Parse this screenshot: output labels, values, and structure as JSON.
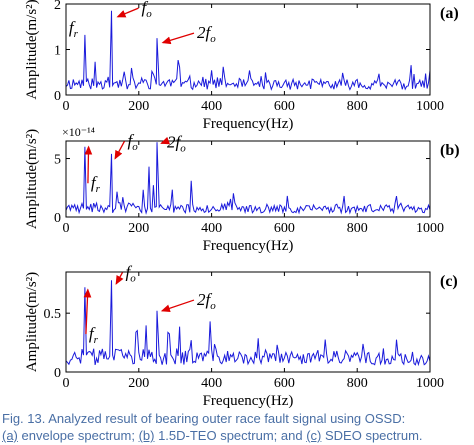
{
  "caption": {
    "line1": "Fig. 13.   Analyzed result of bearing outer race fault signal using OSSD:",
    "line2_a": "(a)",
    "line2_b": " envelope spectrum; ",
    "line2_c": "(b)",
    "line2_d": " 1.5D-TEO spectrum; and ",
    "line2_e": "(c)",
    "line2_f": " SDEO spectrum."
  },
  "chart_data": [
    {
      "type": "line",
      "panel_label": "(a)",
      "xlabel": "Frequency(Hz)",
      "ylabel": "Amplitude(m/s²)",
      "xlim": [
        0,
        1000
      ],
      "ylim": [
        0,
        2
      ],
      "xticks": [
        "0",
        "200",
        "400",
        "600",
        "800",
        "1000"
      ],
      "yticks": [
        "0",
        "1",
        "2"
      ],
      "annotations": [
        {
          "main": "f",
          "sub": "r",
          "x": 52,
          "y": 1.32
        },
        {
          "main": "f",
          "sub": "o",
          "x": 125,
          "y": 1.8
        },
        {
          "main": "2f",
          "sub": "o",
          "x": 250,
          "y": 1.25
        }
      ],
      "peaks": [
        {
          "x": 52,
          "y": 1.32
        },
        {
          "x": 125,
          "y": 1.85
        },
        {
          "x": 250,
          "y": 1.25
        }
      ],
      "seed": 11,
      "noise": {
        "base": 0.12,
        "amp": 0.28,
        "spike": 0.55
      }
    },
    {
      "type": "line",
      "panel_label": "(b)",
      "xlabel": "Frequency(Hz)",
      "ylabel": "Amplitude(m/s²)",
      "exponent": "×10⁻¹⁴",
      "xlim": [
        0,
        1000
      ],
      "ylim": [
        0,
        6.5
      ],
      "xticks": [
        "0",
        "200",
        "400",
        "600",
        "800",
        "1000"
      ],
      "yticks": [
        "0",
        "5"
      ],
      "annotations": [
        {
          "main": "f",
          "sub": "r",
          "x": 52,
          "y": 4.0
        },
        {
          "main": "f",
          "sub": "o",
          "x": 125,
          "y": 5.2
        },
        {
          "main": "2f",
          "sub": "o",
          "x": 250,
          "y": 6.3
        }
      ],
      "peaks": [
        {
          "x": 52,
          "y": 6.0
        },
        {
          "x": 125,
          "y": 5.4
        },
        {
          "x": 250,
          "y": 6.4
        },
        {
          "x": 228,
          "y": 4.3
        }
      ],
      "seed": 23,
      "noise": {
        "base": 0.35,
        "amp": 0.9,
        "spike": 2.0
      }
    },
    {
      "type": "line",
      "panel_label": "(c)",
      "xlabel": "Frequency(Hz)",
      "ylabel": "Amplitude(m/s²)",
      "xlim": [
        0,
        1000
      ],
      "ylim": [
        0,
        0.85
      ],
      "xticks": [
        "0",
        "200",
        "400",
        "600",
        "800",
        "1000"
      ],
      "yticks": [
        "0",
        "0.5"
      ],
      "annotations": [
        {
          "main": "f",
          "sub": "r",
          "x": 52,
          "y": 0.45
        },
        {
          "main": "f",
          "sub": "o",
          "x": 125,
          "y": 0.77
        },
        {
          "main": "2f",
          "sub": "o",
          "x": 250,
          "y": 0.62
        }
      ],
      "peaks": [
        {
          "x": 52,
          "y": 0.72
        },
        {
          "x": 125,
          "y": 0.78
        },
        {
          "x": 250,
          "y": 0.52
        }
      ],
      "seed": 37,
      "noise": {
        "base": 0.06,
        "amp": 0.14,
        "spike": 0.3
      }
    }
  ]
}
